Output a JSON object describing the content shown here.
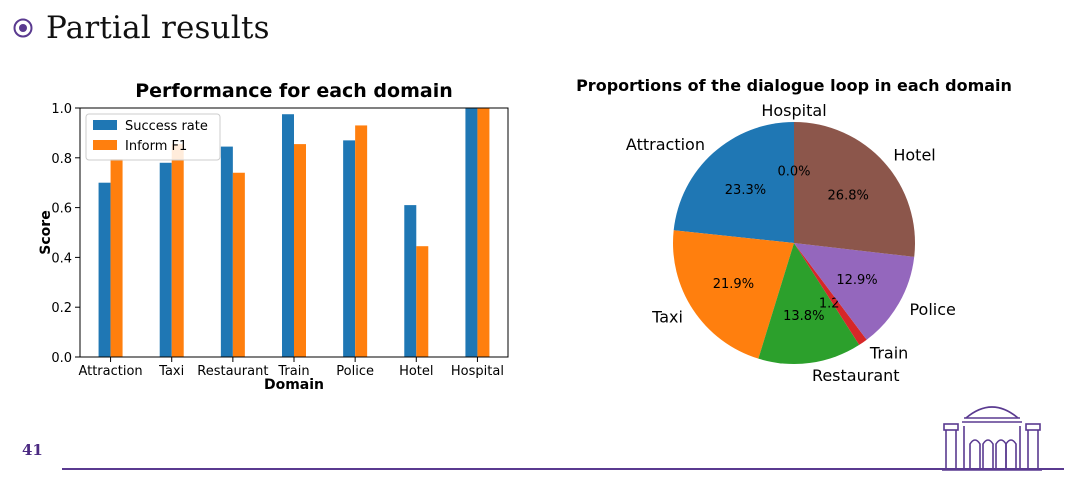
{
  "slide": {
    "title": "Partial results",
    "page_number": "41",
    "accent_color": "#5a3a90"
  },
  "chart_data": [
    {
      "type": "bar",
      "title": "Performance for each domain",
      "xlabel": "Domain",
      "ylabel": "Score",
      "ylim": [
        0,
        1.0
      ],
      "yticks": [
        "0.0",
        "0.2",
        "0.4",
        "0.6",
        "0.8",
        "1.0"
      ],
      "categories": [
        "Attraction",
        "Taxi",
        "Restaurant",
        "Train",
        "Police",
        "Hotel",
        "Hospital"
      ],
      "series": [
        {
          "name": "Success rate",
          "color": "#1f77b4",
          "values": [
            0.7,
            0.78,
            0.845,
            0.975,
            0.87,
            0.61,
            1.0
          ]
        },
        {
          "name": "Inform F1",
          "color": "#ff7f0e",
          "values": [
            0.795,
            0.855,
            0.74,
            0.855,
            0.93,
            0.445,
            1.0
          ]
        }
      ],
      "legend": "top-left",
      "grid": false
    },
    {
      "type": "pie",
      "title": "Proportions of the dialogue loop in each domain",
      "slices": [
        {
          "label": "Attraction",
          "value": 23.3,
          "pct_label": "23.3%",
          "color": "#1f77b4"
        },
        {
          "label": "Taxi",
          "value": 21.9,
          "pct_label": "21.9%",
          "color": "#ff7f0e"
        },
        {
          "label": "Restaurant",
          "value": 13.8,
          "pct_label": "13.8%",
          "color": "#2ca02c"
        },
        {
          "label": "Train",
          "value": 1.2,
          "pct_label": "1.2%",
          "color": "#d62728"
        },
        {
          "label": "Police",
          "value": 12.9,
          "pct_label": "12.9%",
          "color": "#9467bd"
        },
        {
          "label": "Hotel",
          "value": 26.8,
          "pct_label": "26.8%",
          "color": "#8c564b"
        },
        {
          "label": "Hospital",
          "value": 0.0,
          "pct_label": "0.0%",
          "color": "#e377c2"
        }
      ],
      "start_angle_deg": 90,
      "direction": "counterclockwise"
    }
  ]
}
